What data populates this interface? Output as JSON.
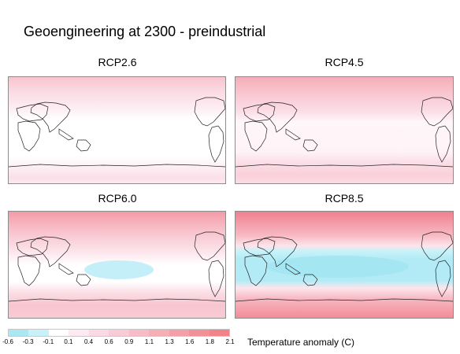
{
  "title": "Geoengineering at 2300 - preindustrial",
  "panels": [
    {
      "label": "RCP2.6"
    },
    {
      "label": "RCP4.5"
    },
    {
      "label": "RCP6.0"
    },
    {
      "label": "RCP8.5"
    }
  ],
  "colorbar": {
    "ticks": [
      "-0.6",
      "-0.3",
      "-0.1",
      "0.1",
      "0.4",
      "0.6",
      "0.9",
      "1.1",
      "1.3",
      "1.6",
      "1.8",
      "2.1"
    ],
    "colors": [
      "#a9e7f3",
      "#c8f2fa",
      "#ffffff",
      "#fde9f2",
      "#fbd9e4",
      "#f9cbd6",
      "#f7bcc6",
      "#f6aeb7",
      "#f5a0a8",
      "#f39199",
      "#f2838b"
    ],
    "label": "Temperature anomaly (C)"
  },
  "colors": {
    "land_outline": "#222222",
    "map_border": "#8c8c8c"
  }
}
